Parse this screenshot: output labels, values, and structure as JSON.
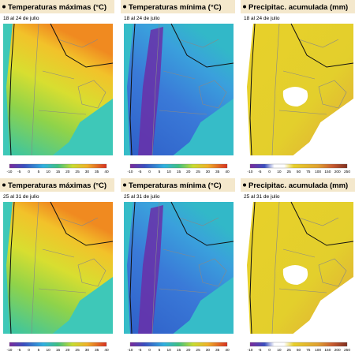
{
  "panels": [
    {
      "title": "Temperaturas máximas (°C)",
      "date": "18 al 24 de julio",
      "kind": "max",
      "ticks": [
        "-10",
        "-5",
        "0",
        "5",
        "10",
        "15",
        "20",
        "25",
        "30",
        "35",
        "40"
      ]
    },
    {
      "title": "Temperaturas mínima (°C)",
      "date": "18 al 24 de julio",
      "kind": "min",
      "ticks": [
        "-10",
        "-5",
        "0",
        "5",
        "10",
        "15",
        "20",
        "25",
        "30",
        "35",
        "40"
      ]
    },
    {
      "title": "Precipitac. acumulada (mm)",
      "date": "18 al 24 de julio",
      "kind": "pp",
      "ticks": [
        "-10",
        "-5",
        "0",
        "10",
        "25",
        "50",
        "75",
        "100",
        "150",
        "200",
        "250"
      ]
    },
    {
      "title": "Temperaturas máximas (°C)",
      "date": "25 al 31 de julio",
      "kind": "max",
      "ticks": [
        "-10",
        "-5",
        "0",
        "5",
        "10",
        "15",
        "20",
        "25",
        "30",
        "35",
        "40"
      ]
    },
    {
      "title": "Temperaturas mínima (°C)",
      "date": "25 al 31 de julio",
      "kind": "min",
      "ticks": [
        "-10",
        "-5",
        "0",
        "5",
        "10",
        "15",
        "20",
        "25",
        "30",
        "35",
        "40"
      ]
    },
    {
      "title": "Precipitac. acumulada (mm)",
      "date": "25 al 31 de julio",
      "kind": "pp",
      "ticks": [
        "-10",
        "-5",
        "0",
        "10",
        "25",
        "50",
        "75",
        "100",
        "150",
        "200",
        "250"
      ]
    }
  ]
}
